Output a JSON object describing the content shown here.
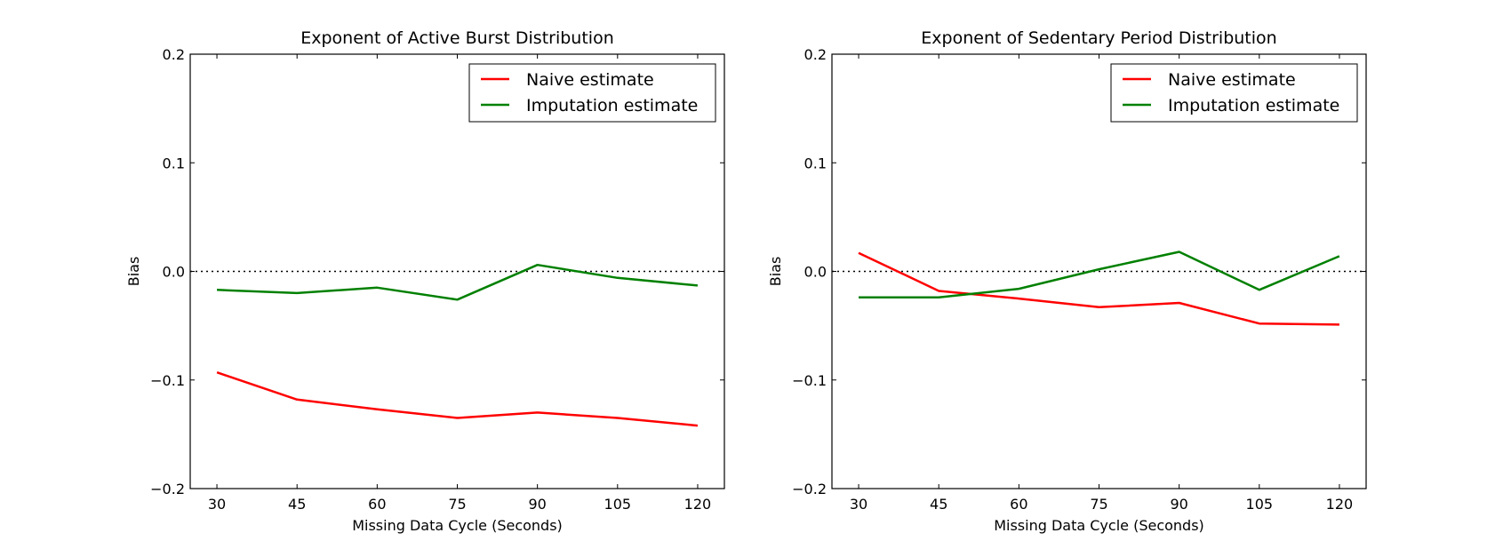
{
  "chart_data": [
    {
      "type": "line",
      "title": "Exponent of Active Burst Distribution",
      "xlabel": "Missing Data Cycle (Seconds)",
      "ylabel": "Bias",
      "x": [
        30,
        45,
        60,
        75,
        90,
        105,
        120
      ],
      "xticks": [
        "30",
        "45",
        "60",
        "75",
        "90",
        "105",
        "120"
      ],
      "yticks": [
        "−0.2",
        "−0.1",
        "0.0",
        "0.1",
        "0.2"
      ],
      "ylim": [
        -0.2,
        0.2
      ],
      "xlim": [
        25,
        125
      ],
      "reference_line": 0.0,
      "legend_position": "top-right",
      "series": [
        {
          "name": "Naive estimate",
          "color": "#ff0000",
          "values": [
            -0.093,
            -0.118,
            -0.127,
            -0.135,
            -0.13,
            -0.135,
            -0.142
          ]
        },
        {
          "name": "Imputation estimate",
          "color": "#008000",
          "values": [
            -0.017,
            -0.02,
            -0.015,
            -0.026,
            0.006,
            -0.006,
            -0.013
          ]
        }
      ]
    },
    {
      "type": "line",
      "title": "Exponent of Sedentary Period Distribution",
      "xlabel": "Missing Data Cycle (Seconds)",
      "ylabel": "Bias",
      "x": [
        30,
        45,
        60,
        75,
        90,
        105,
        120
      ],
      "xticks": [
        "30",
        "45",
        "60",
        "75",
        "90",
        "105",
        "120"
      ],
      "yticks": [
        "−0.2",
        "−0.1",
        "0.0",
        "0.1",
        "0.2"
      ],
      "ylim": [
        -0.2,
        0.2
      ],
      "xlim": [
        25,
        125
      ],
      "reference_line": 0.0,
      "legend_position": "top-right",
      "series": [
        {
          "name": "Naive estimate",
          "color": "#ff0000",
          "values": [
            0.017,
            -0.018,
            -0.025,
            -0.033,
            -0.029,
            -0.048,
            -0.049
          ]
        },
        {
          "name": "Imputation estimate",
          "color": "#008000",
          "values": [
            -0.024,
            -0.024,
            -0.016,
            0.002,
            0.018,
            -0.017,
            0.014
          ]
        }
      ]
    }
  ]
}
